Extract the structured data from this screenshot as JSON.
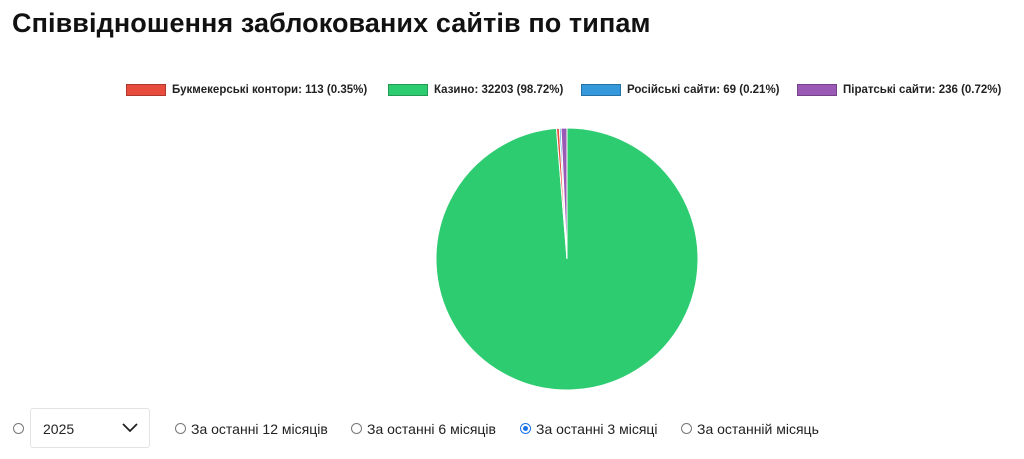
{
  "title": "Співвідношення заблокованих сайтів по типам",
  "chart_data": {
    "type": "pie",
    "title": "Співвідношення заблокованих сайтів по типам",
    "legend_position": "top-right",
    "categories": [
      "Букмекерські контори",
      "Казино",
      "Російські сайти",
      "Піратські сайти"
    ],
    "values": [
      113,
      32203,
      69,
      236
    ],
    "percentages": [
      "0.35%",
      "98.72%",
      "0.21%",
      "0.72%"
    ],
    "colors": [
      "#e74c3c",
      "#2ecc71",
      "#3498db",
      "#9b59b6"
    ],
    "legend_labels": [
      "Букмекерські контори: 113 (0.35%)",
      "Казино: 32203 (98.72%)",
      "Російські сайти: 69 (0.21%)",
      "Піратські сайти: 236 (0.72%)"
    ]
  },
  "filters": {
    "year_select": {
      "value": "2025"
    },
    "options": [
      {
        "label": "За останні 12 місяців",
        "checked": false
      },
      {
        "label": "За останні 6 місяців",
        "checked": false
      },
      {
        "label": "За останні 3 місяці",
        "checked": true
      },
      {
        "label": "За останній місяць",
        "checked": false
      }
    ]
  }
}
